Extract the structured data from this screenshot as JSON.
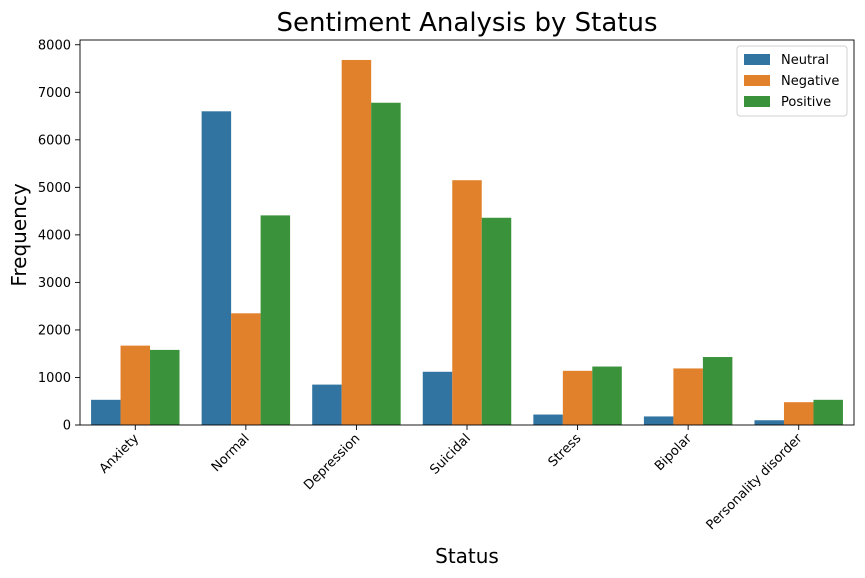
{
  "chart_data": {
    "type": "bar",
    "title": "Sentiment Analysis by Status",
    "xlabel": "Status",
    "ylabel": "Frequency",
    "categories": [
      "Anxiety",
      "Normal",
      "Depression",
      "Suicidal",
      "Stress",
      "Bipolar",
      "Personality disorder"
    ],
    "series": [
      {
        "name": "Neutral",
        "color": "#3274a1",
        "values": [
          530,
          6600,
          850,
          1120,
          220,
          180,
          100
        ]
      },
      {
        "name": "Negative",
        "color": "#e1812c",
        "values": [
          1670,
          2350,
          7680,
          5150,
          1140,
          1190,
          480
        ]
      },
      {
        "name": "Positive",
        "color": "#3a923a",
        "values": [
          1580,
          4410,
          6780,
          4360,
          1230,
          1430,
          530
        ]
      }
    ],
    "ylim": [
      0,
      8100
    ],
    "yticks": [
      0,
      1000,
      2000,
      3000,
      4000,
      5000,
      6000,
      7000,
      8000
    ],
    "legend_position": "top-right",
    "grid": false
  }
}
